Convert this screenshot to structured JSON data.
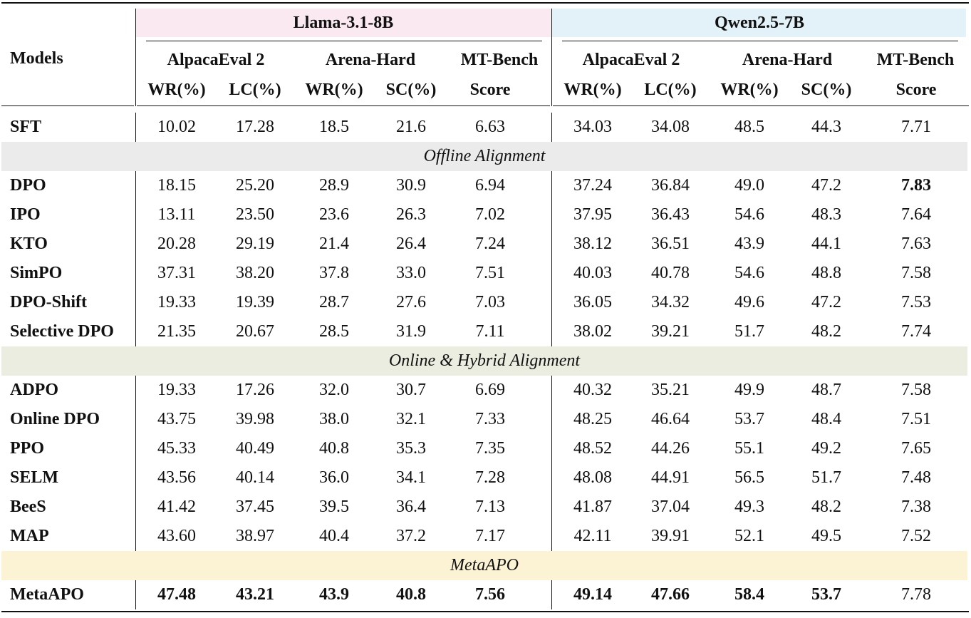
{
  "colors": {
    "llama_header_bg": "#fbe9f1",
    "qwen_header_bg": "#e3f1f8",
    "offline_band_bg": "#ebebeb",
    "online_band_bg": "#ecede1",
    "meta_band_bg": "#fbf3d3"
  },
  "header": {
    "models_label": "Models",
    "groups": [
      "Llama-3.1-8B",
      "Qwen2.5-7B"
    ],
    "benchmarks": [
      "AlpacaEval 2",
      "Arena-Hard",
      "MT-Bench"
    ],
    "metrics": [
      "WR(%)",
      "LC(%)",
      "WR(%)",
      "SC(%)",
      "Score",
      "WR(%)",
      "LC(%)",
      "WR(%)",
      "SC(%)",
      "Score"
    ]
  },
  "sections": [
    {
      "label": "",
      "rows": [
        {
          "model": "SFT",
          "values": [
            "10.02",
            "17.28",
            "18.5",
            "21.6",
            "6.63",
            "34.03",
            "34.08",
            "48.5",
            "44.3",
            "7.71"
          ],
          "bold": []
        }
      ]
    },
    {
      "label": "Offline Alignment",
      "rows": [
        {
          "model": "DPO",
          "values": [
            "18.15",
            "25.20",
            "28.9",
            "30.9",
            "6.94",
            "37.24",
            "36.84",
            "49.0",
            "47.2",
            "7.83"
          ],
          "bold": [
            9
          ]
        },
        {
          "model": "IPO",
          "values": [
            "13.11",
            "23.50",
            "23.6",
            "26.3",
            "7.02",
            "37.95",
            "36.43",
            "54.6",
            "48.3",
            "7.64"
          ],
          "bold": []
        },
        {
          "model": "KTO",
          "values": [
            "20.28",
            "29.19",
            "21.4",
            "26.4",
            "7.24",
            "38.12",
            "36.51",
            "43.9",
            "44.1",
            "7.63"
          ],
          "bold": []
        },
        {
          "model": "SimPO",
          "values": [
            "37.31",
            "38.20",
            "37.8",
            "33.0",
            "7.51",
            "40.03",
            "40.78",
            "54.6",
            "48.8",
            "7.58"
          ],
          "bold": []
        },
        {
          "model": "DPO-Shift",
          "values": [
            "19.33",
            "19.39",
            "28.7",
            "27.6",
            "7.03",
            "36.05",
            "34.32",
            "49.6",
            "47.2",
            "7.53"
          ],
          "bold": []
        },
        {
          "model": "Selective DPO",
          "values": [
            "21.35",
            "20.67",
            "28.5",
            "31.9",
            "7.11",
            "38.02",
            "39.21",
            "51.7",
            "48.2",
            "7.74"
          ],
          "bold": []
        }
      ]
    },
    {
      "label": "Online & Hybrid Alignment",
      "rows": [
        {
          "model": "ADPO",
          "values": [
            "19.33",
            "17.26",
            "32.0",
            "30.7",
            "6.69",
            "40.32",
            "35.21",
            "49.9",
            "48.7",
            "7.58"
          ],
          "bold": []
        },
        {
          "model": "Online DPO",
          "values": [
            "43.75",
            "39.98",
            "38.0",
            "32.1",
            "7.33",
            "48.25",
            "46.64",
            "53.7",
            "48.4",
            "7.51"
          ],
          "bold": []
        },
        {
          "model": "PPO",
          "values": [
            "45.33",
            "40.49",
            "40.8",
            "35.3",
            "7.35",
            "48.52",
            "44.26",
            "55.1",
            "49.2",
            "7.65"
          ],
          "bold": []
        },
        {
          "model": "SELM",
          "values": [
            "43.56",
            "40.14",
            "36.0",
            "34.1",
            "7.28",
            "48.08",
            "44.91",
            "56.5",
            "51.7",
            "7.48"
          ],
          "bold": []
        },
        {
          "model": "BeeS",
          "values": [
            "41.42",
            "37.45",
            "39.5",
            "36.4",
            "7.13",
            "41.87",
            "37.04",
            "49.3",
            "48.2",
            "7.38"
          ],
          "bold": []
        },
        {
          "model": "MAP",
          "values": [
            "43.60",
            "38.97",
            "40.4",
            "37.2",
            "7.17",
            "42.11",
            "39.91",
            "52.1",
            "49.5",
            "7.52"
          ],
          "bold": []
        }
      ]
    },
    {
      "label": "MetaAPO",
      "rows": [
        {
          "model": "MetaAPO",
          "values": [
            "47.48",
            "43.21",
            "43.9",
            "40.8",
            "7.56",
            "49.14",
            "47.66",
            "58.4",
            "53.7",
            "7.78"
          ],
          "bold": [
            0,
            1,
            2,
            3,
            4,
            5,
            6,
            7,
            8
          ]
        }
      ]
    }
  ]
}
